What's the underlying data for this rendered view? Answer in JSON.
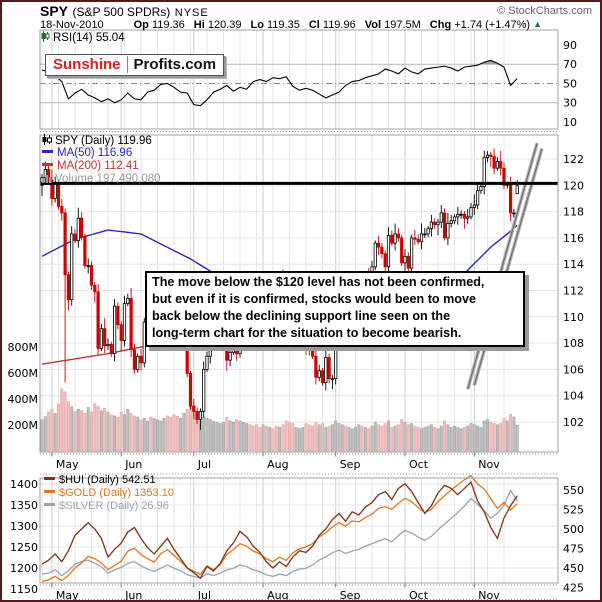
{
  "header": {
    "symbol": "SPY",
    "name": "(S&P 500 SPDRs)",
    "exchange": "NYSE",
    "copyright": "© StockCharts.com",
    "date": "18-Nov-2010",
    "quote": {
      "op": [
        "Op",
        "119.36"
      ],
      "hi": [
        "Hi",
        "120.39"
      ],
      "lo": [
        "Lo",
        "119.35"
      ],
      "cl": [
        "Cl",
        "119.96"
      ],
      "vol": [
        "Vol",
        "197.5M"
      ],
      "chg": [
        "Chg",
        "+1.74 (+1.47%)"
      ]
    },
    "up_arrow": "▲"
  },
  "watermark": {
    "part1": "Sunshine",
    "part2": "Profits.com"
  },
  "rsi_legend": "RSI(14) 55.04",
  "main_legend": {
    "row1": "SPY (Daily) 119.96",
    "row2": "MA(50) 116.96",
    "row3": "MA(200) 112.41",
    "row4": "Volume 197,490,080"
  },
  "bottom_legend": {
    "row1": "$HUI (Daily) 542.51",
    "row2": "$GOLD (Daily) 1353.10",
    "row3": "$SILVER (Daily) 26.96"
  },
  "annotation_text": "The move below the $120 level has not been confirmed,\nbut even if it is confirmed, stocks would been to move\nback below the declining support line seen on the\nlong-term chart for the situation to become bearish.",
  "colors": {
    "frame": "#4e1c1c",
    "grid_light": "#e6e6e6",
    "grid_month": "#cfcfcf",
    "panel_border": "#a0a0a0",
    "candle_up": "#000000",
    "candle_down": "#cc0000",
    "vol_up_fill": "#bdbdbd",
    "vol_up_stroke": "#9e9e9e",
    "vol_down_fill": "#f2bdbd",
    "vol_down_stroke": "#e0a0a0",
    "ma50": "#2929c8",
    "ma200": "#d03030",
    "rsi_line": "#000000",
    "rsi_fill": "#8fae8c",
    "hui": "#7f3318",
    "gold": "#e8761e",
    "silver": "#9aa4ac",
    "level_line": "#000000",
    "trendline": "#b0b0b0",
    "trendline_edge": "#666666"
  },
  "chart_data": {
    "type": "multi-panel-financial",
    "months": [
      "May",
      "Jun",
      "Jul",
      "Aug",
      "Sep",
      "Oct",
      "Nov"
    ],
    "month_start_indices": [
      3,
      24,
      46,
      67,
      89,
      110,
      131
    ],
    "total_days": 145,
    "panels": [
      {
        "type": "line",
        "name": "rsi",
        "title": "RSI(14) 55.04",
        "range": [
          0,
          100
        ],
        "ticks": [
          90,
          70,
          50,
          30,
          10
        ],
        "guides_solid": [
          70,
          30
        ],
        "guide_dashdot": 50,
        "overbought_fill_above": 70,
        "x_step_days": 2,
        "values": [
          64,
          62,
          58,
          52,
          34,
          40,
          44,
          38,
          35,
          31,
          34,
          30,
          33,
          40,
          34,
          33,
          41,
          43,
          49,
          50,
          46,
          41,
          40,
          28,
          27,
          33,
          41,
          44,
          48,
          42,
          46,
          44,
          52,
          54,
          52,
          56,
          55,
          57,
          47,
          43,
          45,
          43,
          39,
          35,
          38,
          41,
          48,
          52,
          53,
          56,
          58,
          60,
          65,
          63,
          60,
          66,
          62,
          60,
          65,
          66,
          67,
          68,
          66,
          63,
          67,
          68,
          69,
          72,
          74,
          71,
          67,
          48,
          55.04
        ]
      },
      {
        "type": "candlestick",
        "name": "price",
        "price_ticks": [
          122,
          120,
          118,
          116,
          114,
          112,
          110,
          108,
          106,
          104,
          102
        ],
        "volume_ticks_millions": [
          800,
          600,
          400,
          200
        ],
        "level_line_price": 120.15,
        "closes": [
          120.6,
          121.2,
          120.4,
          119.0,
          120.2,
          118.4,
          117.9,
          113.2,
          111.3,
          116.3,
          115.8,
          117.5,
          116.1,
          113.9,
          113.9,
          112.4,
          111.9,
          107.6,
          109.1,
          107.8,
          107.9,
          107.2,
          110.8,
          109.4,
          108.2,
          111.0,
          111.4,
          107.5,
          106.0,
          107.0,
          106.5,
          109.6,
          110.2,
          110.0,
          112.5,
          112.6,
          112.7,
          112.9,
          112.5,
          110.7,
          110.5,
          108.7,
          109.0,
          109.0,
          105.7,
          103.2,
          102.8,
          102.2,
          102.8,
          106.0,
          107.0,
          107.9,
          108.0,
          109.7,
          109.7,
          109.8,
          106.7,
          107.3,
          108.6,
          107.2,
          109.6,
          110.4,
          111.6,
          111.5,
          110.9,
          110.5,
          110.3,
          112.6,
          112.0,
          112.8,
          112.7,
          112.4,
          113.0,
          112.4,
          109.2,
          108.7,
          108.3,
          108.3,
          109.7,
          109.8,
          107.9,
          107.5,
          107.0,
          105.4,
          105.9,
          105.0,
          106.9,
          105.3,
          105.3,
          108.4,
          109.4,
          110.8,
          109.5,
          110.2,
          110.7,
          111.2,
          112.6,
          112.5,
          112.9,
          112.8,
          113.8,
          115.6,
          115.3,
          114.8,
          113.8,
          116.2,
          115.6,
          116.3,
          116.0,
          114.1,
          114.6,
          113.7,
          116.0,
          115.9,
          115.7,
          116.3,
          116.3,
          116.7,
          117.2,
          117.0,
          117.2,
          117.9,
          116.0,
          117.1,
          117.3,
          117.6,
          117.8,
          117.8,
          117.5,
          117.6,
          118.3,
          118.5,
          119.6,
          119.9,
          122.1,
          122.3,
          122.2,
          121.3,
          121.8,
          121.3,
          120.0,
          120.1,
          117.9,
          117.9,
          119.96
        ],
        "last_ohlc": [
          119.36,
          120.39,
          119.35,
          119.96
        ],
        "low_overrides": {
          "7": 105.0
        },
        "volumes_millions": [
          240,
          265,
          300,
          320,
          290,
          360,
          480,
          455,
          380,
          340,
          305,
          320,
          310,
          290,
          335,
          300,
          365,
          345,
          310,
          330,
          300,
          280,
          270,
          260,
          300,
          280,
          320,
          290,
          270,
          262,
          240,
          252,
          230,
          262,
          250,
          240,
          232,
          252,
          270,
          260,
          280,
          268,
          252,
          290,
          320,
          340,
          352,
          282,
          232,
          262,
          250,
          242,
          230,
          222,
          212,
          222,
          260,
          232,
          222,
          242,
          230,
          220,
          212,
          202,
          192,
          202,
          182,
          202,
          192,
          182,
          172,
          192,
          182,
          202,
          232,
          222,
          212,
          182,
          172,
          182,
          212,
          202,
          192,
          222,
          202,
          212,
          182,
          192,
          202,
          232,
          212,
          202,
          192,
          182,
          172,
          182,
          202,
          192,
          182,
          172,
          192,
          222,
          202,
          192,
          212,
          232,
          182,
          192,
          202,
          242,
          222,
          202,
          212,
          192,
          182,
          172,
          182,
          192,
          202,
          182,
          172,
          192,
          232,
          202,
          182,
          192,
          182,
          172,
          182,
          192,
          212,
          202,
          192,
          182,
          232,
          242,
          222,
          212,
          202,
          212,
          252,
          232,
          282,
          262,
          197.5
        ],
        "ma50_anchors": [
          [
            0,
            114.6
          ],
          [
            10,
            115.9
          ],
          [
            20,
            116.6
          ],
          [
            30,
            116.3
          ],
          [
            45,
            114.4
          ],
          [
            60,
            112.1
          ],
          [
            70,
            110.6
          ],
          [
            80,
            109.4
          ],
          [
            90,
            108.4
          ],
          [
            97,
            108.0
          ],
          [
            105,
            108.6
          ],
          [
            112,
            109.6
          ],
          [
            118,
            110.8
          ],
          [
            124,
            112.2
          ],
          [
            130,
            113.8
          ],
          [
            136,
            115.3
          ],
          [
            141,
            116.3
          ],
          [
            144,
            116.96
          ]
        ],
        "ma200_anchors": [
          [
            0,
            106.4
          ],
          [
            20,
            107.2
          ],
          [
            40,
            108.2
          ],
          [
            60,
            109.2
          ],
          [
            75,
            110.1
          ],
          [
            90,
            110.9
          ],
          [
            105,
            111.5
          ],
          [
            120,
            111.9
          ],
          [
            135,
            112.2
          ],
          [
            144,
            112.41
          ]
        ],
        "trendlines": [
          [
            129,
            104.5,
            150,
            123.2
          ],
          [
            131,
            104.8,
            151.5,
            122.8
          ]
        ]
      },
      {
        "type": "line-multi",
        "name": "metals",
        "left_ticks": [
          1400,
          1350,
          1300,
          1250,
          1200,
          1150
        ],
        "right_ticks": [
          550,
          525,
          500,
          475,
          450,
          425
        ],
        "x_step_days": 2,
        "series": [
          {
            "name": "$SILVER",
            "axis": "hidden",
            "values": [
              18.1,
              18.2,
              18.6,
              17.9,
              18.5,
              19.3,
              19.6,
              19.8,
              19.4,
              19.0,
              18.2,
              18.6,
              18.9,
              19.4,
              19.6,
              19.1,
              18.7,
              18.4,
              18.8,
              19.2,
              18.8,
              18.5,
              18.0,
              17.8,
              17.6,
              18.1,
              17.9,
              18.2,
              18.6,
              18.8,
              19.2,
              19.0,
              18.6,
              18.4,
              18.0,
              17.8,
              18.1,
              17.9,
              18.4,
              18.7,
              18.8,
              19.2,
              19.8,
              20.2,
              20.7,
              21.0,
              20.6,
              20.9,
              21.1,
              21.5,
              21.8,
              22.1,
              22.4,
              22.0,
              22.8,
              23.4,
              23.1,
              22.6,
              22.2,
              22.7,
              23.5,
              24.2,
              24.9,
              25.6,
              26.4,
              27.3,
              26.6,
              25.8,
              24.9,
              25.5,
              26.5,
              28.3,
              26.96
            ]
          },
          {
            "name": "$GOLD",
            "axis": "left",
            "values": [
              1168,
              1172,
              1180,
              1170,
              1182,
              1200,
              1212,
              1228,
              1222,
              1212,
              1196,
              1206,
              1216,
              1240,
              1247,
              1232,
              1222,
              1214,
              1234,
              1244,
              1230,
              1216,
              1200,
              1192,
              1185,
              1205,
              1196,
              1208,
              1232,
              1244,
              1258,
              1252,
              1240,
              1234,
              1222,
              1215,
              1226,
              1218,
              1236,
              1246,
              1250,
              1258,
              1274,
              1284,
              1298,
              1308,
              1300,
              1312,
              1310,
              1320,
              1328,
              1342,
              1346,
              1340,
              1354,
              1366,
              1358,
              1344,
              1332,
              1340,
              1358,
              1372,
              1386,
              1398,
              1410,
              1420,
              1400,
              1388,
              1365,
              1342,
              1356,
              1338,
              1353.1
            ]
          },
          {
            "name": "$HUI",
            "axis": "right",
            "values": [
              455,
              460,
              468,
              458,
              472,
              492,
              500,
              508,
              500,
              488,
              464,
              474,
              482,
              496,
              502,
              488,
              476,
              468,
              478,
              488,
              474,
              462,
              450,
              444,
              437,
              452,
              446,
              456,
              472,
              482,
              497,
              490,
              478,
              470,
              458,
              450,
              458,
              452,
              464,
              472,
              470,
              478,
              492,
              500,
              512,
              520,
              510,
              522,
              518,
              528,
              534,
              544,
              548,
              538,
              552,
              558,
              548,
              534,
              520,
              530,
              546,
              556,
              552,
              544,
              552,
              560,
              536,
              522,
              502,
              488,
              514,
              530,
              542.51
            ]
          }
        ]
      }
    ]
  }
}
